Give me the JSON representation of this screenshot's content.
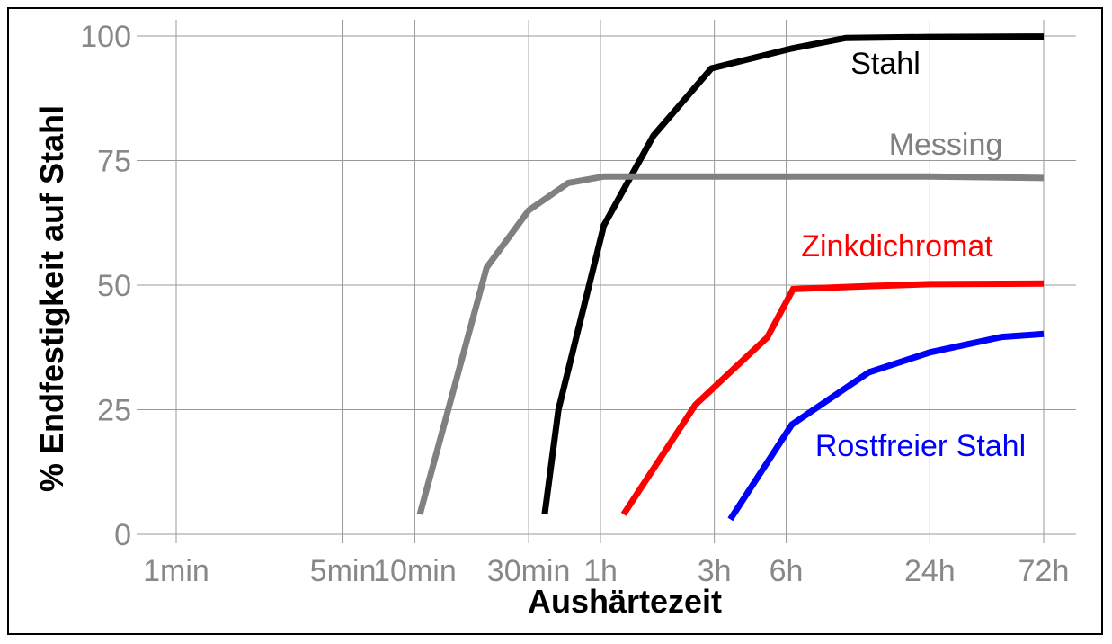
{
  "chart_data": {
    "type": "line",
    "title": "",
    "xlabel": "Aushärtezeit",
    "ylabel": "% Endfestigkeit auf Stahl",
    "ylim": [
      0,
      100
    ],
    "y_ticks": [
      0,
      25,
      50,
      75,
      100
    ],
    "x_scale": "log",
    "x_unit": "minutes",
    "x_ticks": [
      {
        "label": "1min",
        "value": 1
      },
      {
        "label": "5min",
        "value": 5
      },
      {
        "label": "10min",
        "value": 10
      },
      {
        "label": "30min",
        "value": 30
      },
      {
        "label": "1h",
        "value": 60
      },
      {
        "label": "3h",
        "value": 180
      },
      {
        "label": "6h",
        "value": 360
      },
      {
        "label": "24h",
        "value": 1440
      },
      {
        "label": "72h",
        "value": 4320
      }
    ],
    "grid": true,
    "series": [
      {
        "name": "Stahl",
        "color": "#000000",
        "points": [
          [
            35,
            4
          ],
          [
            40,
            25
          ],
          [
            62,
            62
          ],
          [
            100,
            80
          ],
          [
            175,
            93.5
          ],
          [
            380,
            97.5
          ],
          [
            640,
            99.6
          ],
          [
            1440,
            99.8
          ],
          [
            4320,
            99.9
          ]
        ]
      },
      {
        "name": "Messing",
        "color": "#808080",
        "points": [
          [
            10.5,
            4
          ],
          [
            20,
            53.5
          ],
          [
            30,
            65
          ],
          [
            44,
            70.5
          ],
          [
            62,
            71.8
          ],
          [
            360,
            71.8
          ],
          [
            1440,
            71.8
          ],
          [
            4320,
            71.5
          ]
        ]
      },
      {
        "name": "Zinkdichromat",
        "color": "#ff0000",
        "points": [
          [
            75,
            4
          ],
          [
            150,
            26
          ],
          [
            300,
            39.5
          ],
          [
            385,
            49.2
          ],
          [
            800,
            49.8
          ],
          [
            1440,
            50.2
          ],
          [
            4320,
            50.3
          ]
        ]
      },
      {
        "name": "Rostfreier Stahl",
        "color": "#0000ff",
        "points": [
          [
            210,
            3
          ],
          [
            380,
            22
          ],
          [
            800,
            32.5
          ],
          [
            1440,
            36.5
          ],
          [
            2880,
            39.6
          ],
          [
            4320,
            40.2
          ]
        ]
      }
    ]
  }
}
